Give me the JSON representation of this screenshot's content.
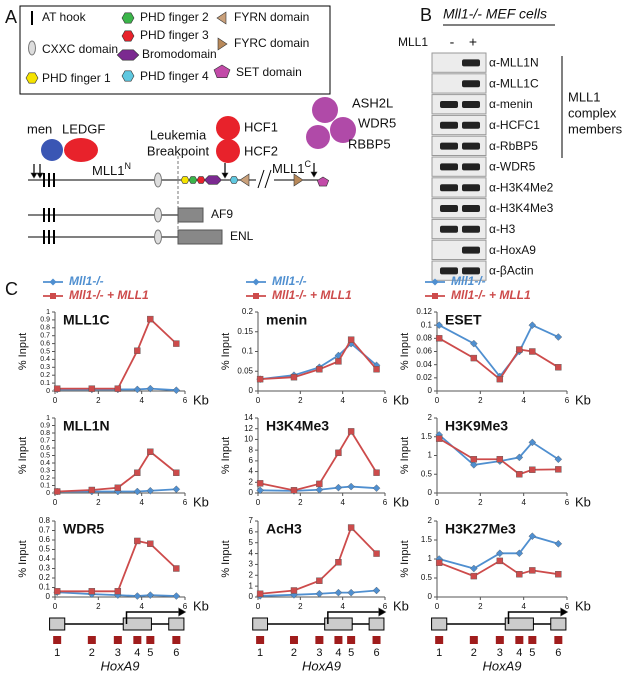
{
  "panel_a": {
    "label": "A",
    "legend": [
      "AT hook",
      "CXXC domain",
      "PHD finger 1",
      "PHD finger 2",
      "PHD finger 3",
      "Bromodomain",
      "PHD finger 4",
      "FYRN domain",
      "FYRC domain",
      "SET domain"
    ],
    "men": "men",
    "ledgf": "LEDGF",
    "breakpoint": [
      "Leukemia",
      "Breakpoint"
    ],
    "hcf": [
      "HCF1",
      "HCF2"
    ],
    "complex": [
      "ASH2L",
      "WDR5",
      "RBBP5"
    ],
    "mll1_n": {
      "text": "MLL1",
      "sup": "N"
    },
    "mll1_c": {
      "text": "MLL1",
      "sup": "C"
    },
    "fusions": [
      "AF9",
      "ENL"
    ]
  },
  "panel_b": {
    "label": "B",
    "title": "Mll1-/- MEF cells",
    "treatment": "MLL1",
    "lanes": [
      "-",
      "+"
    ],
    "antibodies": [
      "α-MLL1N",
      "α-MLL1C",
      "α-menin",
      "α-HCFC1",
      "α-RbBP5",
      "α-WDR5",
      "α-H3K4Me2",
      "α-H3K4Me3",
      "α-H3",
      "α-HoxA9",
      "α-βActin"
    ],
    "bracket_label": [
      "MLL1",
      "complex",
      "members"
    ]
  },
  "panel_c": {
    "label": "C",
    "gene_map": {
      "primers": [
        "1",
        "2",
        "3",
        "4",
        "5",
        "6"
      ],
      "gene": "HoxA9"
    }
  },
  "chart_data": [
    {
      "type": "line",
      "title": "MLL1C",
      "y_label": "% Input",
      "x_label": "Kb",
      "x": [
        0.1,
        1.7,
        2.9,
        3.8,
        4.4,
        5.6
      ],
      "xlim": [
        0,
        6
      ],
      "xticks": [
        0,
        2,
        4,
        6
      ],
      "ylim": [
        0,
        1
      ],
      "yticks": [
        0,
        0.1,
        0.2,
        0.3,
        0.4,
        0.5,
        0.6,
        0.7,
        0.8,
        0.9,
        1
      ],
      "series": [
        {
          "name": "Mll1-/-",
          "color": "#4f8fd0",
          "values": [
            0.02,
            0.02,
            0.02,
            0.02,
            0.03,
            0.01
          ]
        },
        {
          "name": "Mll1-/- + MLL1",
          "color": "#cd4b4b",
          "values": [
            0.03,
            0.03,
            0.03,
            0.51,
            0.91,
            0.6
          ]
        }
      ]
    },
    {
      "type": "line",
      "title": "menin",
      "y_label": "% Input",
      "x_label": "Kb",
      "x": [
        0.1,
        1.7,
        2.9,
        3.8,
        4.4,
        5.6
      ],
      "xlim": [
        0,
        6
      ],
      "xticks": [
        0,
        2,
        4,
        6
      ],
      "ylim": [
        0,
        0.2
      ],
      "yticks": [
        0,
        0.05,
        0.1,
        0.15,
        0.2
      ],
      "series": [
        {
          "name": "Mll1-/-",
          "color": "#4f8fd0",
          "values": [
            0.03,
            0.04,
            0.06,
            0.09,
            0.12,
            0.065
          ]
        },
        {
          "name": "Mll1-/- + MLL1",
          "color": "#cd4b4b",
          "values": [
            0.03,
            0.035,
            0.055,
            0.075,
            0.13,
            0.055
          ]
        }
      ]
    },
    {
      "type": "line",
      "title": "ESET",
      "y_label": "% Input",
      "x_label": "Kb",
      "x": [
        0.1,
        1.7,
        2.9,
        3.8,
        4.4,
        5.6
      ],
      "xlim": [
        0,
        6
      ],
      "xticks": [
        0,
        2,
        4,
        6
      ],
      "ylim": [
        0,
        0.12
      ],
      "yticks": [
        0,
        0.02,
        0.04,
        0.06,
        0.08,
        0.1,
        0.12
      ],
      "series": [
        {
          "name": "Mll1-/-",
          "color": "#4f8fd0",
          "values": [
            0.1,
            0.072,
            0.022,
            0.06,
            0.1,
            0.082
          ]
        },
        {
          "name": "Mll1-/- + MLL1",
          "color": "#cd4b4b",
          "values": [
            0.08,
            0.05,
            0.018,
            0.063,
            0.06,
            0.036
          ]
        }
      ]
    },
    {
      "type": "line",
      "title": "MLL1N",
      "y_label": "% Input",
      "x_label": "Kb",
      "x": [
        0.1,
        1.7,
        2.9,
        3.8,
        4.4,
        5.6
      ],
      "xlim": [
        0,
        6
      ],
      "xticks": [
        0,
        2,
        4,
        6
      ],
      "ylim": [
        0,
        1
      ],
      "yticks": [
        0,
        0.1,
        0.2,
        0.3,
        0.4,
        0.5,
        0.6,
        0.7,
        0.8,
        0.9,
        1
      ],
      "series": [
        {
          "name": "Mll1-/-",
          "color": "#4f8fd0",
          "values": [
            0.02,
            0.02,
            0.02,
            0.02,
            0.03,
            0.05
          ]
        },
        {
          "name": "Mll1-/- + MLL1",
          "color": "#cd4b4b",
          "values": [
            0.02,
            0.04,
            0.07,
            0.27,
            0.55,
            0.27
          ]
        }
      ]
    },
    {
      "type": "line",
      "title": "H3K4Me3",
      "y_label": "% Input",
      "x_label": "Kb",
      "x": [
        0.1,
        1.7,
        2.9,
        3.8,
        4.4,
        5.6
      ],
      "xlim": [
        0,
        6
      ],
      "xticks": [
        0,
        2,
        4,
        6
      ],
      "ylim": [
        0,
        14
      ],
      "yticks": [
        0,
        2,
        4,
        6,
        8,
        10,
        12,
        14
      ],
      "series": [
        {
          "name": "Mll1-/-",
          "color": "#4f8fd0",
          "values": [
            0.5,
            0.4,
            0.6,
            1.0,
            1.2,
            0.9
          ]
        },
        {
          "name": "Mll1-/- + MLL1",
          "color": "#cd4b4b",
          "values": [
            1.8,
            0.5,
            1.7,
            7.5,
            11.5,
            3.8
          ]
        }
      ]
    },
    {
      "type": "line",
      "title": "H3K9Me3",
      "y_label": "% Input",
      "x_label": "Kb",
      "x": [
        0.1,
        1.7,
        2.9,
        3.8,
        4.4,
        5.6
      ],
      "xlim": [
        0,
        6
      ],
      "xticks": [
        0,
        2,
        4,
        6
      ],
      "ylim": [
        0,
        2
      ],
      "yticks": [
        0,
        0.5,
        1,
        1.5,
        2
      ],
      "series": [
        {
          "name": "Mll1-/-",
          "color": "#4f8fd0",
          "values": [
            1.55,
            0.75,
            0.85,
            0.95,
            1.35,
            0.9
          ]
        },
        {
          "name": "Mll1-/- + MLL1",
          "color": "#cd4b4b",
          "values": [
            1.45,
            0.9,
            0.9,
            0.5,
            0.62,
            0.63
          ]
        }
      ]
    },
    {
      "type": "line",
      "title": "WDR5",
      "y_label": "% Input",
      "x_label": "Kb",
      "x": [
        0.1,
        1.7,
        2.9,
        3.8,
        4.4,
        5.6
      ],
      "xlim": [
        0,
        6
      ],
      "xticks": [
        0,
        2,
        4,
        6
      ],
      "ylim": [
        0,
        0.8
      ],
      "yticks": [
        0,
        0.1,
        0.2,
        0.3,
        0.4,
        0.5,
        0.6,
        0.7,
        0.8
      ],
      "series": [
        {
          "name": "Mll1-/-",
          "color": "#4f8fd0",
          "values": [
            0.05,
            0.03,
            0.02,
            0.01,
            0.02,
            0.01
          ]
        },
        {
          "name": "Mll1-/- + MLL1",
          "color": "#cd4b4b",
          "values": [
            0.06,
            0.06,
            0.06,
            0.59,
            0.56,
            0.3
          ]
        }
      ]
    },
    {
      "type": "line",
      "title": "AcH3",
      "y_label": "% Input",
      "x_label": "Kb",
      "x": [
        0.1,
        1.7,
        2.9,
        3.8,
        4.4,
        5.6
      ],
      "xlim": [
        0,
        6
      ],
      "xticks": [
        0,
        2,
        4,
        6
      ],
      "ylim": [
        0,
        7
      ],
      "yticks": [
        0,
        1,
        2,
        3,
        4,
        5,
        6,
        7
      ],
      "series": [
        {
          "name": "Mll1-/-",
          "color": "#4f8fd0",
          "values": [
            0.1,
            0.2,
            0.3,
            0.4,
            0.4,
            0.6
          ]
        },
        {
          "name": "Mll1-/- + MLL1",
          "color": "#cd4b4b",
          "values": [
            0.3,
            0.6,
            1.5,
            3.2,
            6.4,
            4.0
          ]
        }
      ]
    },
    {
      "type": "line",
      "title": "H3K27Me3",
      "y_label": "% Input",
      "x_label": "Kb",
      "x": [
        0.1,
        1.7,
        2.9,
        3.8,
        4.4,
        5.6
      ],
      "xlim": [
        0,
        6
      ],
      "xticks": [
        0,
        2,
        4,
        6
      ],
      "ylim": [
        0,
        2
      ],
      "yticks": [
        0,
        0.5,
        1,
        1.5,
        2
      ],
      "series": [
        {
          "name": "Mll1-/-",
          "color": "#4f8fd0",
          "values": [
            1.0,
            0.75,
            1.15,
            1.15,
            1.6,
            1.4
          ]
        },
        {
          "name": "Mll1-/- + MLL1",
          "color": "#cd4b4b",
          "values": [
            0.9,
            0.55,
            0.95,
            0.6,
            0.7,
            0.6
          ]
        }
      ]
    }
  ]
}
